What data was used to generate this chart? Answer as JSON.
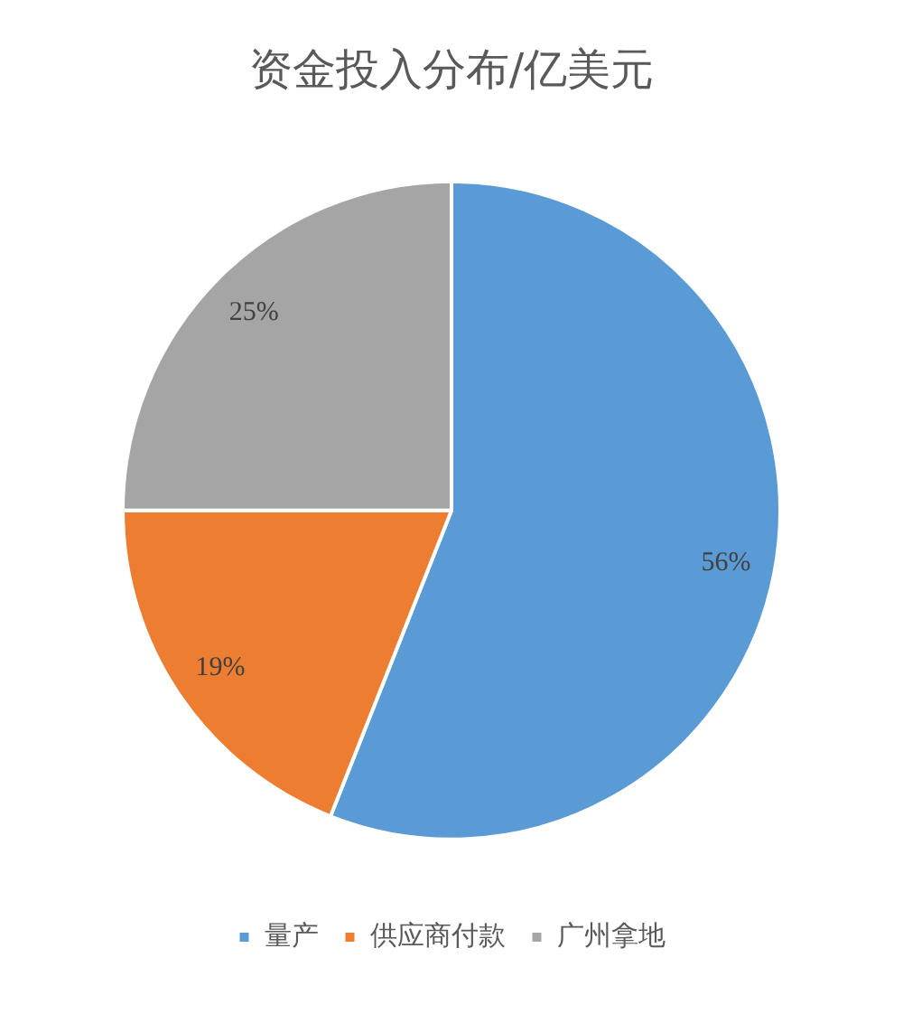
{
  "chart_data": {
    "type": "pie",
    "title": "资金投入分布/亿美元",
    "categories": [
      "量产",
      "供应商付款",
      "广州拿地"
    ],
    "values": [
      56,
      19,
      25
    ],
    "colors": [
      "#5b9bd5",
      "#ed7d31",
      "#a5a5a5"
    ],
    "value_labels": [
      "56%",
      "19%",
      "25%"
    ],
    "legend": "bottom"
  }
}
